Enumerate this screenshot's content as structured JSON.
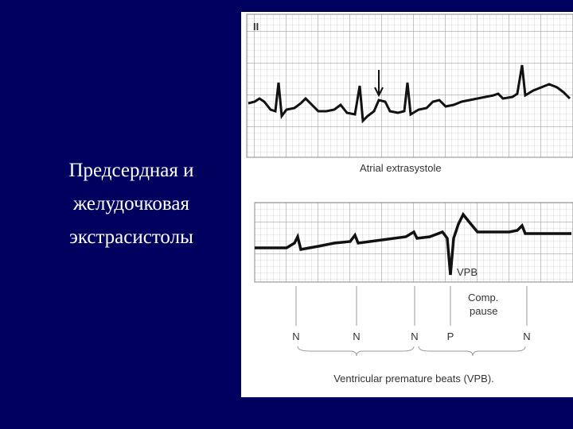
{
  "title_lines": [
    "Предсердная и",
    "желудочковая",
    "экстрасистолы"
  ],
  "top_strip": {
    "lead": "II",
    "caption": "Atrial extrasystole"
  },
  "bottom_strip": {
    "vpb_label": "VPB",
    "pause_label": [
      "Comp.",
      "pause"
    ],
    "beat_labels": [
      "N",
      "N",
      "N",
      "P",
      "N"
    ],
    "caption": "Ventricular premature beats (VPB)."
  }
}
